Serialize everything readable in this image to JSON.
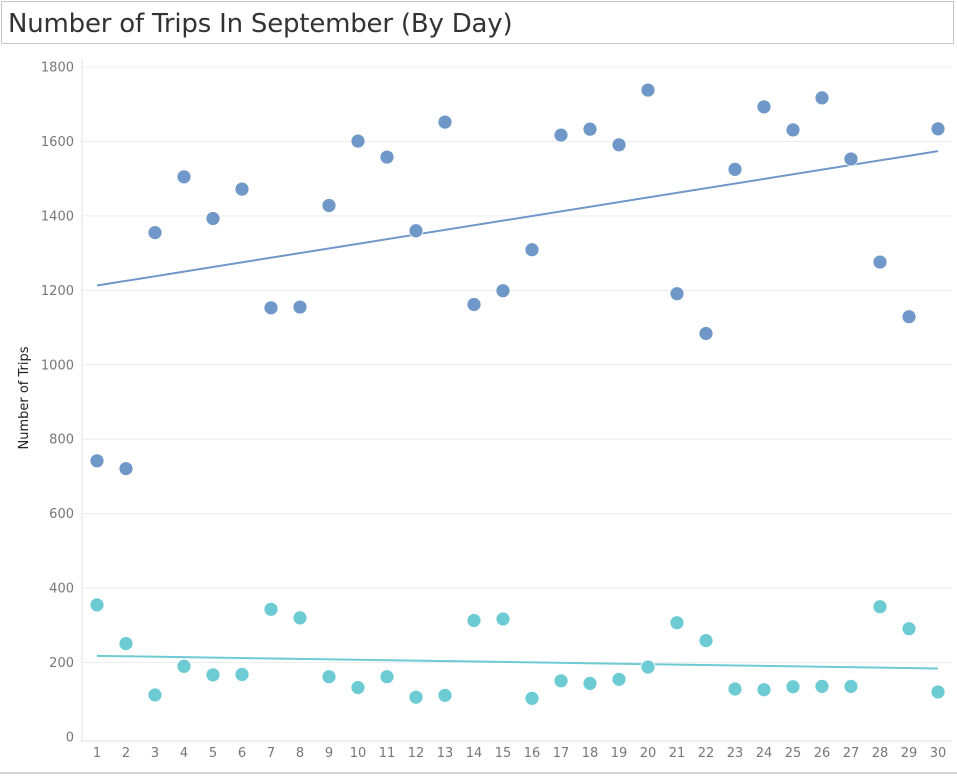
{
  "title": "Number of Trips In September (By Day)",
  "chart_data": {
    "type": "scatter",
    "title": "Number of Trips In September (By Day)",
    "xlabel": "",
    "ylabel": "Number of Trips",
    "xlim": [
      1,
      30
    ],
    "ylim": [
      0,
      1800
    ],
    "yticks": [
      0,
      200,
      400,
      600,
      800,
      1000,
      1200,
      1400,
      1600,
      1800
    ],
    "x": [
      1,
      2,
      3,
      4,
      5,
      6,
      7,
      8,
      9,
      10,
      11,
      12,
      13,
      14,
      15,
      16,
      17,
      18,
      19,
      20,
      21,
      22,
      23,
      24,
      25,
      26,
      27,
      28,
      29,
      30
    ],
    "grid": true,
    "legend": "none",
    "series": [
      {
        "color": "#6f98c8",
        "values": [
          742,
          721,
          1355,
          1505,
          1393,
          1472,
          1153,
          1155,
          1428,
          1601,
          1558,
          1360,
          1652,
          1162,
          1199,
          1309,
          1617,
          1633,
          1591,
          1738,
          1191,
          1084,
          1525,
          1693,
          1631,
          1717,
          1553,
          1276,
          1129,
          1634
        ],
        "trend": [
          1213,
          1574
        ]
      },
      {
        "color": "#6dcbd4",
        "values": [
          355,
          251,
          113,
          190,
          167,
          168,
          343,
          320,
          162,
          133,
          162,
          107,
          112,
          313,
          317,
          104,
          151,
          144,
          155,
          188,
          307,
          259,
          129,
          127,
          135,
          136,
          136,
          350,
          291,
          121
        ],
        "trend": [
          218,
          184
        ]
      }
    ]
  }
}
